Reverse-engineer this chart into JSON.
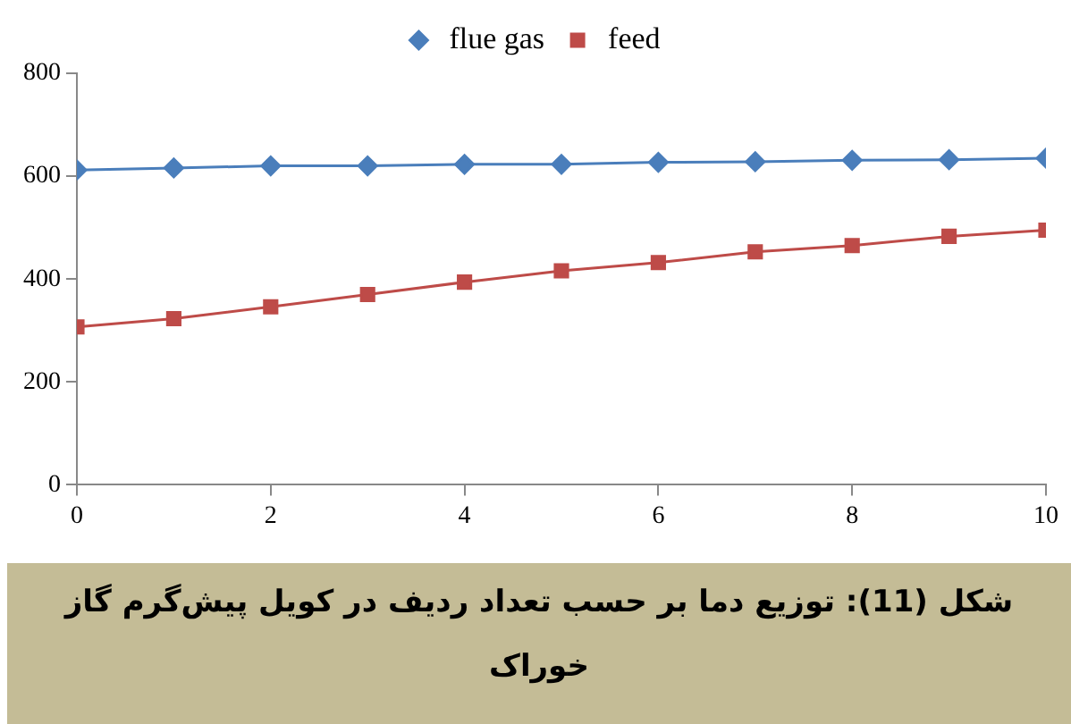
{
  "chart_data": {
    "type": "line",
    "x": [
      0,
      1,
      2,
      3,
      4,
      5,
      6,
      7,
      8,
      9,
      10
    ],
    "series": [
      {
        "name": "flue gas",
        "color": "#4a7ebb",
        "marker": "diamond",
        "values": [
          612,
          616,
          620,
          620,
          623,
          623,
          627,
          628,
          631,
          632,
          635
        ]
      },
      {
        "name": "feed",
        "color": "#be4b48",
        "marker": "square",
        "values": [
          307,
          323,
          346,
          370,
          394,
          416,
          432,
          453,
          465,
          483,
          495
        ]
      }
    ],
    "xlim": [
      0,
      10
    ],
    "xticks": [
      0,
      2,
      4,
      6,
      8,
      10
    ],
    "ylim": [
      0,
      800
    ],
    "yticks": [
      0,
      200,
      400,
      600,
      800
    ],
    "grid": false,
    "legend": "top",
    "annotations": [
      "شکل (11): توزیع دما بر حسب تعداد ردیف در کویل پیش‌گرم گاز خوراک"
    ]
  }
}
